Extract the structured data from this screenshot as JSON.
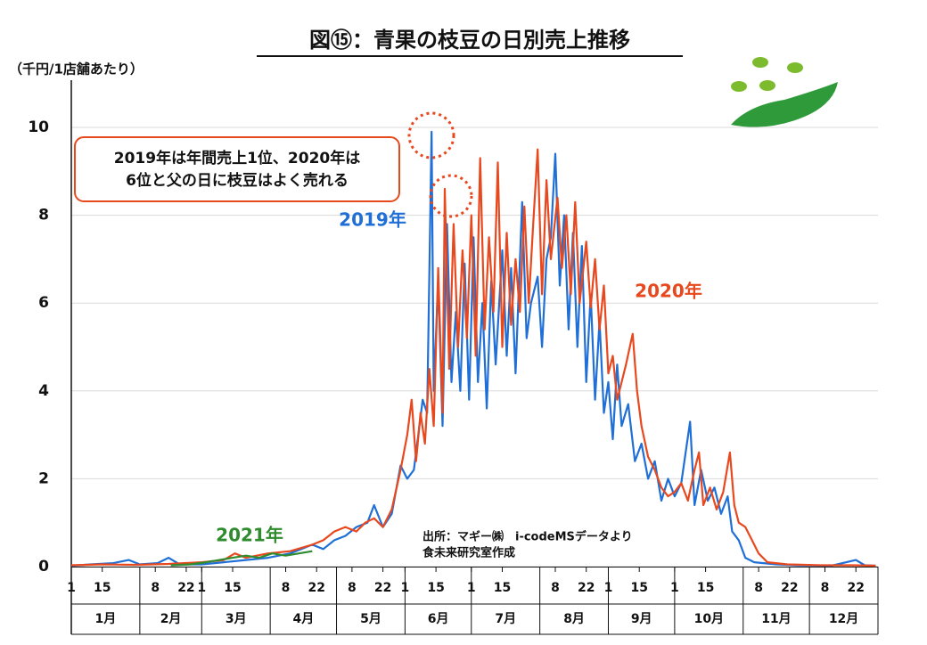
{
  "chart_data": {
    "type": "line",
    "title": "図⑮：青果の枝豆の日別売上推移",
    "y_label": "（千円/1店舗あたり）",
    "callout": [
      "2019年は年間売上1位、2020年は",
      "6位と父の日に枝豆はよく売れる"
    ],
    "source": [
      "出所：マギー㈱　i-codeMSデータより",
      "食未来研究室作成"
    ],
    "xlim": [
      1,
      366
    ],
    "ylim": [
      0,
      10
    ],
    "yticks": [
      0,
      2,
      4,
      6,
      8,
      10
    ],
    "grid": true,
    "xticks": [
      1,
      15,
      {
        "value": 39,
        "label": "8"
      },
      {
        "value": 53,
        "label": "22"
      },
      {
        "value": 60,
        "label": "1"
      },
      {
        "value": 74,
        "label": "15"
      },
      {
        "value": 98,
        "label": "8"
      },
      {
        "value": 112,
        "label": "22"
      },
      {
        "value": 128,
        "label": "8"
      },
      {
        "value": 142,
        "label": "22"
      },
      {
        "value": 152,
        "label": "1"
      },
      {
        "value": 166,
        "label": "15"
      },
      {
        "value": 182,
        "label": "1"
      },
      {
        "value": 196,
        "label": "15"
      },
      {
        "value": 220,
        "label": "8"
      },
      {
        "value": 234,
        "label": "22"
      },
      {
        "value": 244,
        "label": "1"
      },
      {
        "value": 258,
        "label": "15"
      },
      {
        "value": 274,
        "label": "1"
      },
      {
        "value": 288,
        "label": "15"
      },
      {
        "value": 312,
        "label": "8"
      },
      {
        "value": 326,
        "label": "22"
      },
      {
        "value": 342,
        "label": "8"
      },
      {
        "value": 356,
        "label": "22"
      }
    ],
    "months": [
      "1月",
      "2月",
      "3月",
      "4月",
      "5月",
      "6月",
      "7月",
      "8月",
      "9月",
      "10月",
      "11月",
      "12月"
    ],
    "month_bounds": [
      1,
      32,
      60,
      91,
      121,
      152,
      182,
      213,
      244,
      274,
      305,
      335,
      366
    ],
    "series": [
      {
        "name": "2019年",
        "color": "#1f6fd6",
        "x": [
          1,
          10,
          20,
          27,
          32,
          40,
          45,
          50,
          60,
          70,
          80,
          90,
          100,
          105,
          110,
          115,
          120,
          125,
          130,
          135,
          138,
          142,
          146,
          150,
          153,
          156,
          158,
          160,
          162,
          164,
          165,
          167,
          169,
          171,
          173,
          175,
          177,
          179,
          181,
          183,
          185,
          187,
          189,
          191,
          193,
          196,
          198,
          200,
          202,
          205,
          207,
          209,
          212,
          214,
          216,
          218,
          220,
          222,
          224,
          226,
          228,
          230,
          232,
          234,
          236,
          238,
          240,
          242,
          244,
          246,
          248,
          250,
          253,
          256,
          259,
          262,
          265,
          268,
          271,
          274,
          277,
          281,
          283,
          286,
          289,
          292,
          295,
          298,
          300,
          303,
          306,
          310,
          320,
          330,
          345,
          356,
          360,
          365
        ],
        "values": [
          0.02,
          0.05,
          0.08,
          0.15,
          0.05,
          0.08,
          0.2,
          0.05,
          0.05,
          0.1,
          0.15,
          0.2,
          0.3,
          0.4,
          0.5,
          0.4,
          0.6,
          0.7,
          0.9,
          1.0,
          1.4,
          0.9,
          1.2,
          2.3,
          2.0,
          2.2,
          3.0,
          3.8,
          3.5,
          9.9,
          4.0,
          6.5,
          3.2,
          7.8,
          4.2,
          5.8,
          4.0,
          6.9,
          3.8,
          7.5,
          4.2,
          6.0,
          3.6,
          6.5,
          4.6,
          7.2,
          4.8,
          6.8,
          4.4,
          8.3,
          5.2,
          6.0,
          6.6,
          5.0,
          7.0,
          7.5,
          9.4,
          6.4,
          8.0,
          5.4,
          7.6,
          5.0,
          7.3,
          4.2,
          6.2,
          3.8,
          5.6,
          3.5,
          4.2,
          2.9,
          4.6,
          3.2,
          3.7,
          2.4,
          2.8,
          2.0,
          2.4,
          1.5,
          2.0,
          1.6,
          1.9,
          3.3,
          1.4,
          2.2,
          1.5,
          1.8,
          1.2,
          1.6,
          0.8,
          0.6,
          0.2,
          0.1,
          0.05,
          0.03,
          0.02,
          0.15,
          0.03,
          0.02
        ]
      },
      {
        "name": "2020年",
        "color": "#e8481e",
        "x": [
          1,
          15,
          30,
          45,
          60,
          70,
          75,
          80,
          90,
          100,
          110,
          115,
          120,
          125,
          130,
          134,
          138,
          142,
          146,
          150,
          153,
          155,
          157,
          159,
          161,
          163,
          165,
          167,
          169,
          170,
          172,
          174,
          176,
          178,
          180,
          182,
          184,
          186,
          188,
          190,
          192,
          194,
          196,
          198,
          200,
          202,
          204,
          206,
          208,
          210,
          212,
          214,
          216,
          218,
          221,
          223,
          225,
          227,
          229,
          231,
          234,
          236,
          238,
          240,
          242,
          244,
          246,
          248,
          250,
          252,
          255,
          257,
          259,
          262,
          265,
          268,
          271,
          274,
          277,
          280,
          283,
          285,
          287,
          290,
          293,
          296,
          299,
          301,
          303,
          306,
          309,
          312,
          316,
          325,
          340,
          355,
          365
        ],
        "values": [
          0.03,
          0.05,
          0.04,
          0.06,
          0.1,
          0.15,
          0.3,
          0.2,
          0.3,
          0.35,
          0.5,
          0.6,
          0.8,
          0.9,
          0.8,
          1.0,
          1.1,
          0.9,
          1.3,
          2.2,
          3.0,
          3.8,
          2.4,
          3.5,
          2.8,
          4.5,
          3.2,
          6.8,
          3.5,
          8.6,
          4.5,
          7.8,
          5.0,
          7.2,
          5.2,
          8.0,
          4.8,
          9.3,
          5.4,
          7.5,
          5.8,
          9.2,
          5.0,
          7.6,
          5.5,
          7.0,
          5.8,
          8.2,
          6.0,
          7.8,
          9.5,
          6.2,
          8.8,
          7.0,
          8.4,
          6.8,
          8.0,
          6.2,
          8.3,
          6.0,
          7.4,
          5.9,
          7.0,
          5.4,
          6.4,
          4.4,
          4.8,
          3.8,
          4.2,
          4.6,
          5.3,
          4.0,
          3.2,
          2.5,
          2.2,
          1.8,
          1.6,
          1.7,
          1.9,
          1.5,
          2.2,
          2.6,
          1.4,
          1.8,
          1.3,
          1.7,
          2.6,
          1.4,
          1.0,
          0.9,
          0.6,
          0.3,
          0.1,
          0.05,
          0.03,
          0.03,
          0.02
        ]
      },
      {
        "name": "2021年",
        "color": "#2e8b2e",
        "x": [
          46,
          55,
          62,
          68,
          74,
          80,
          86,
          92,
          98,
          104,
          110
        ],
        "values": [
          0.03,
          0.05,
          0.1,
          0.15,
          0.2,
          0.25,
          0.2,
          0.3,
          0.25,
          0.3,
          0.35
        ]
      }
    ]
  }
}
